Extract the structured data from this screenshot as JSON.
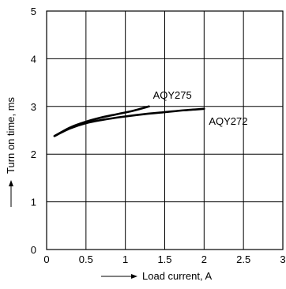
{
  "chart_data": {
    "type": "line",
    "title": "",
    "xlabel": "Load current, A",
    "ylabel": "Turn on time, ms",
    "xlim": [
      0,
      3
    ],
    "ylim": [
      0,
      5
    ],
    "x_ticks": [
      "0",
      "0.5",
      "1",
      "1.5",
      "2",
      "2.5",
      "3"
    ],
    "y_ticks": [
      "0",
      "1",
      "2",
      "3",
      "4",
      "5"
    ],
    "grid": true,
    "legend": "none",
    "series": [
      {
        "name": "AQY275",
        "x": [
          0.1,
          0.3,
          0.5,
          0.7,
          0.9,
          1.1,
          1.3
        ],
        "y": [
          2.38,
          2.56,
          2.68,
          2.77,
          2.84,
          2.91,
          3.0
        ]
      },
      {
        "name": "AQY272",
        "x": [
          0.1,
          0.3,
          0.5,
          0.75,
          1.0,
          1.25,
          1.5,
          1.75,
          2.0
        ],
        "y": [
          2.38,
          2.54,
          2.65,
          2.73,
          2.79,
          2.84,
          2.88,
          2.92,
          2.95
        ]
      }
    ]
  }
}
